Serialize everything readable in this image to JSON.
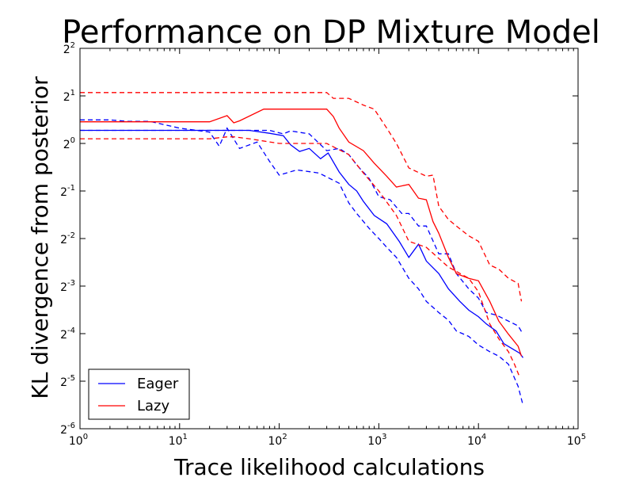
{
  "chart_data": {
    "type": "line",
    "title": "Performance on DP Mixture Model",
    "xlabel": "Trace likelihood calculations",
    "ylabel": "KL divergence from posterior",
    "x_scale": "log10",
    "y_scale": "log2",
    "xlim": [
      1,
      100000
    ],
    "ylim": [
      0.015625,
      4
    ],
    "x_ticks": [
      {
        "value": 1,
        "base": "10",
        "exp": "0"
      },
      {
        "value": 10,
        "base": "10",
        "exp": "1"
      },
      {
        "value": 100,
        "base": "10",
        "exp": "2"
      },
      {
        "value": 1000,
        "base": "10",
        "exp": "3"
      },
      {
        "value": 10000,
        "base": "10",
        "exp": "4"
      },
      {
        "value": 100000,
        "base": "10",
        "exp": "5"
      }
    ],
    "y_ticks": [
      {
        "value": 0.015625,
        "base": "2",
        "exp": "-6"
      },
      {
        "value": 0.03125,
        "base": "2",
        "exp": "-5"
      },
      {
        "value": 0.0625,
        "base": "2",
        "exp": "-4"
      },
      {
        "value": 0.125,
        "base": "2",
        "exp": "-3"
      },
      {
        "value": 0.25,
        "base": "2",
        "exp": "-2"
      },
      {
        "value": 0.5,
        "base": "2",
        "exp": "-1"
      },
      {
        "value": 1,
        "base": "2",
        "exp": "0"
      },
      {
        "value": 2,
        "base": "2",
        "exp": "1"
      },
      {
        "value": 4,
        "base": "2",
        "exp": "2"
      }
    ],
    "grid": false,
    "legend": {
      "position": "lower-left",
      "entries": [
        {
          "label": "Eager",
          "color": "#0000ff"
        },
        {
          "label": "Lazy",
          "color": "#ff0000"
        }
      ]
    },
    "series": [
      {
        "name": "Eager",
        "role": "mean",
        "color": "#0000ff",
        "dash": "solid",
        "x": [
          1,
          20,
          30,
          50,
          80,
          110,
          130,
          160,
          200,
          260,
          310,
          400,
          500,
          600,
          700,
          900,
          1200,
          1600,
          2000,
          2500,
          3000,
          4000,
          5000,
          6500,
          8000,
          10000,
          12000,
          15000,
          18000,
          22000,
          26000,
          28000
        ],
        "y": [
          1.21,
          1.21,
          1.21,
          1.21,
          1.16,
          1.12,
          0.98,
          0.89,
          0.93,
          0.8,
          0.87,
          0.66,
          0.55,
          0.5,
          0.43,
          0.35,
          0.31,
          0.24,
          0.19,
          0.23,
          0.18,
          0.15,
          0.12,
          0.1,
          0.088,
          0.08,
          0.072,
          0.065,
          0.054,
          0.05,
          0.047,
          0.044
        ]
      },
      {
        "name": "Eager upper",
        "role": "band",
        "color": "#0000ff",
        "dash": "dashed",
        "x": [
          1,
          10,
          20,
          30,
          50,
          80,
          110,
          130,
          200,
          300,
          400,
          500,
          600,
          800,
          1000,
          1300,
          1700,
          2000,
          2500,
          3000,
          4000,
          5000,
          6000,
          8000,
          10000,
          12000,
          15000,
          20000,
          25000,
          28000
        ],
        "y": [
          1.21,
          1.21,
          1.21,
          1.21,
          1.21,
          1.21,
          1.15,
          1.2,
          1.15,
          0.9,
          0.93,
          0.85,
          0.73,
          0.6,
          0.46,
          0.44,
          0.36,
          0.36,
          0.3,
          0.3,
          0.2,
          0.2,
          0.15,
          0.12,
          0.105,
          0.085,
          0.082,
          0.075,
          0.07,
          0.062
        ]
      },
      {
        "name": "Eager lower",
        "role": "band",
        "color": "#0000ff",
        "dash": "dashed",
        "x": [
          1,
          2,
          3,
          5,
          10,
          20,
          25,
          30,
          40,
          60,
          80,
          100,
          150,
          250,
          400,
          500,
          600,
          800,
          1000,
          1200,
          1500,
          2000,
          2500,
          3000,
          4000,
          5000,
          6000,
          8000,
          10000,
          13000,
          16000,
          20000,
          25000,
          28000
        ],
        "y": [
          1.41,
          1.41,
          1.38,
          1.38,
          1.25,
          1.18,
          0.96,
          1.25,
          0.93,
          1.02,
          0.77,
          0.63,
          0.68,
          0.65,
          0.56,
          0.42,
          0.36,
          0.29,
          0.25,
          0.22,
          0.19,
          0.14,
          0.12,
          0.1,
          0.085,
          0.076,
          0.065,
          0.06,
          0.053,
          0.048,
          0.045,
          0.04,
          0.029,
          0.022
        ]
      },
      {
        "name": "Lazy",
        "role": "mean",
        "color": "#ff0000",
        "dash": "solid",
        "x": [
          1,
          20,
          30,
          35,
          40,
          70,
          300,
          350,
          400,
          500,
          700,
          900,
          1200,
          1500,
          2000,
          2500,
          3000,
          3500,
          4000,
          5000,
          6000,
          8000,
          10000,
          13000,
          16000,
          20000,
          25000,
          27000
        ],
        "y": [
          1.37,
          1.37,
          1.5,
          1.35,
          1.39,
          1.65,
          1.65,
          1.48,
          1.25,
          1.02,
          0.9,
          0.75,
          0.62,
          0.53,
          0.55,
          0.45,
          0.44,
          0.32,
          0.27,
          0.19,
          0.15,
          0.14,
          0.135,
          0.1,
          0.075,
          0.062,
          0.052,
          0.045
        ]
      },
      {
        "name": "Lazy upper",
        "role": "band",
        "color": "#ff0000",
        "dash": "dashed",
        "x": [
          1,
          300,
          350,
          500,
          700,
          900,
          1200,
          1500,
          2000,
          3000,
          3500,
          4000,
          5000,
          6000,
          8000,
          10000,
          13000,
          16000,
          20000,
          25000,
          27000
        ],
        "y": [
          2.1,
          2.1,
          1.93,
          1.93,
          1.75,
          1.65,
          1.25,
          1.0,
          0.7,
          0.62,
          0.63,
          0.4,
          0.33,
          0.3,
          0.26,
          0.24,
          0.17,
          0.16,
          0.14,
          0.13,
          0.1
        ]
      },
      {
        "name": "Lazy lower",
        "role": "band",
        "color": "#ff0000",
        "dash": "dashed",
        "x": [
          1,
          20,
          30,
          35,
          50,
          100,
          200,
          300,
          500,
          700,
          1000,
          1500,
          2000,
          3000,
          5000,
          8000,
          10000,
          13000,
          16000,
          20000,
          23000,
          26000
        ],
        "y": [
          1.07,
          1.07,
          1.1,
          1.1,
          1.07,
          1.0,
          1.0,
          1.0,
          0.85,
          0.65,
          0.5,
          0.35,
          0.24,
          0.22,
          0.165,
          0.14,
          0.115,
          0.072,
          0.058,
          0.048,
          0.04,
          0.033
        ]
      }
    ]
  }
}
